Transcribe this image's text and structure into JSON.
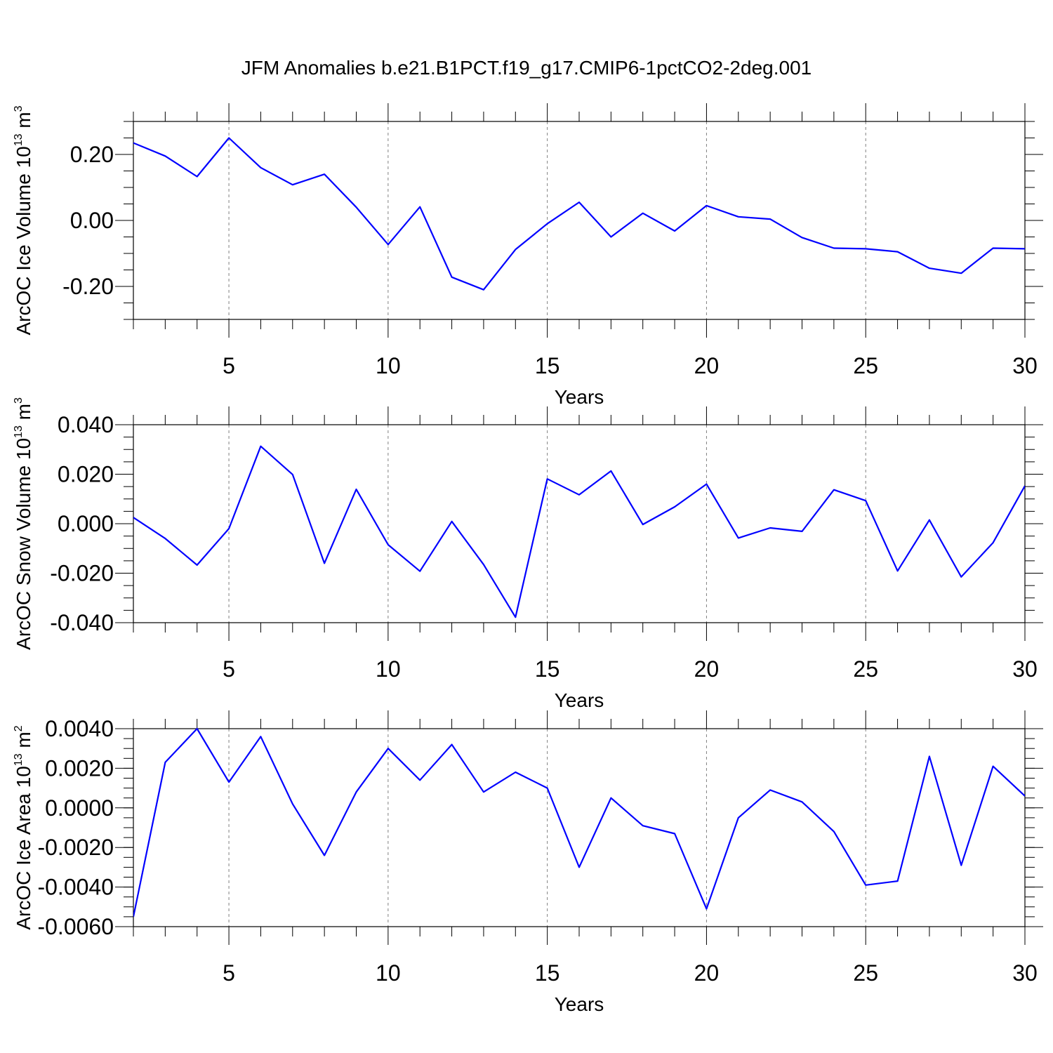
{
  "figure": {
    "title": "JFM Anomalies b.e21.B1PCT.f19_g17.CMIP6-1pctCO2-2deg.001"
  },
  "colors": {
    "line": "#0000ff",
    "axis": "#000000",
    "grid": "#808080"
  },
  "chart_data": [
    {
      "type": "line",
      "xlabel": "Years",
      "ylabel_text": "ArcOC Ice Volume 10",
      "ylabel_exponent": "13",
      "ylabel_unit": " m",
      "ylabel_unit_exponent": "3",
      "xlim": [
        2,
        30
      ],
      "ylim": [
        -0.3,
        0.3
      ],
      "xticks": [
        5,
        10,
        15,
        20,
        25,
        30
      ],
      "xtick_labels": [
        "5",
        "10",
        "15",
        "20",
        "25",
        "30"
      ],
      "yticks": [
        -0.2,
        0.0,
        0.2
      ],
      "ytick_labels": [
        "-0.20",
        "0.00",
        "0.20"
      ],
      "yminor_step": 0.05,
      "vgrid": [
        5,
        10,
        15,
        20,
        25
      ],
      "series": [
        {
          "name": "ArcOC Ice Volume",
          "x": [
            2,
            3,
            4,
            5,
            6,
            7,
            8,
            9,
            10,
            11,
            12,
            13,
            14,
            15,
            16,
            17,
            18,
            19,
            20,
            21,
            22,
            23,
            24,
            25,
            26,
            27,
            28,
            29,
            30
          ],
          "values": [
            0.235,
            0.195,
            0.133,
            0.25,
            0.16,
            0.108,
            0.14,
            0.04,
            -0.073,
            0.041,
            -0.172,
            -0.21,
            -0.088,
            -0.01,
            0.055,
            -0.05,
            0.022,
            -0.032,
            0.045,
            0.011,
            0.004,
            -0.052,
            -0.084,
            -0.086,
            -0.095,
            -0.145,
            -0.16,
            -0.084,
            -0.086
          ]
        }
      ]
    },
    {
      "type": "line",
      "xlabel": "Years",
      "ylabel_text": "ArcOC Snow Volume 10",
      "ylabel_exponent": "13",
      "ylabel_unit": " m",
      "ylabel_unit_exponent": "3",
      "xlim": [
        2,
        30
      ],
      "ylim": [
        -0.04,
        0.04
      ],
      "xticks": [
        5,
        10,
        15,
        20,
        25,
        30
      ],
      "xtick_labels": [
        "5",
        "10",
        "15",
        "20",
        "25",
        "30"
      ],
      "yticks": [
        -0.04,
        -0.02,
        0.0,
        0.02,
        0.04
      ],
      "ytick_labels": [
        "-0.040",
        "-0.020",
        "0.000",
        "0.020",
        "0.040"
      ],
      "yminor_step": 0.005,
      "vgrid": [
        5,
        10,
        15,
        20,
        25
      ],
      "series": [
        {
          "name": "ArcOC Snow Volume",
          "x": [
            2,
            3,
            4,
            5,
            6,
            7,
            8,
            9,
            10,
            11,
            12,
            13,
            14,
            15,
            16,
            17,
            18,
            19,
            20,
            21,
            22,
            23,
            24,
            25,
            26,
            27,
            28,
            29,
            30
          ],
          "values": [
            0.0025,
            -0.006,
            -0.0167,
            -0.002,
            0.0313,
            0.0199,
            -0.016,
            0.0139,
            -0.0085,
            -0.0192,
            0.0009,
            -0.0165,
            -0.0378,
            0.0181,
            0.0117,
            0.0213,
            -0.0003,
            0.0068,
            0.016,
            -0.0058,
            -0.0017,
            -0.0031,
            0.0137,
            0.0093,
            -0.0191,
            0.0015,
            -0.0215,
            -0.0077,
            0.0153
          ]
        }
      ]
    },
    {
      "type": "line",
      "xlabel": "Years",
      "ylabel_text": "ArcOC Ice Area 10",
      "ylabel_exponent": "13",
      "ylabel_unit": " m",
      "ylabel_unit_exponent": "2",
      "xlim": [
        2,
        30
      ],
      "ylim": [
        -0.006,
        0.004
      ],
      "xticks": [
        5,
        10,
        15,
        20,
        25,
        30
      ],
      "xtick_labels": [
        "5",
        "10",
        "15",
        "20",
        "25",
        "30"
      ],
      "yticks": [
        -0.006,
        -0.004,
        -0.002,
        0.0,
        0.002,
        0.004
      ],
      "ytick_labels": [
        "-0.0060",
        "-0.0040",
        "-0.0020",
        "0.0000",
        "0.0020",
        "0.0040"
      ],
      "yminor_step": 0.0005,
      "vgrid": [
        5,
        10,
        15,
        20,
        25
      ],
      "series": [
        {
          "name": "ArcOC Ice Area",
          "x": [
            2,
            3,
            4,
            5,
            6,
            7,
            8,
            9,
            10,
            11,
            12,
            13,
            14,
            15,
            16,
            17,
            18,
            19,
            20,
            21,
            22,
            23,
            24,
            25,
            26,
            27,
            28,
            29,
            30
          ],
          "values": [
            -0.0055,
            0.0023,
            0.004,
            0.0013,
            0.0036,
            0.0002,
            -0.0024,
            0.0008,
            0.003,
            0.0014,
            0.0032,
            0.0008,
            0.0018,
            0.001,
            -0.003,
            0.0005,
            -0.0009,
            -0.0013,
            -0.0051,
            -0.0005,
            0.0009,
            0.0003,
            -0.0012,
            -0.0039,
            -0.0037,
            0.0026,
            -0.0029,
            0.0021,
            0.0006
          ]
        }
      ]
    }
  ]
}
